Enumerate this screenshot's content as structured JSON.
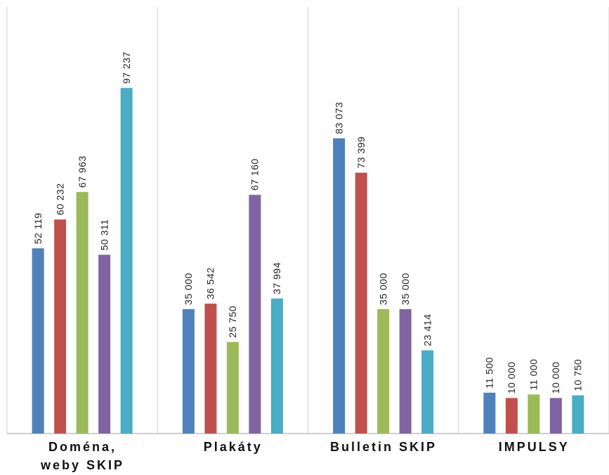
{
  "chart_data": {
    "type": "bar",
    "categories": [
      "Doména,\nweby SKIP",
      "Plakáty",
      "Bulletin SKIP",
      "IMPULSY"
    ],
    "series": [
      {
        "color": "#4f81bd",
        "values": [
          52119,
          35000,
          83073,
          11500
        ],
        "value_labels": [
          "52 119",
          "35 000",
          "83 073",
          "11 500"
        ]
      },
      {
        "color": "#c0504d",
        "values": [
          60232,
          36542,
          73399,
          10000
        ],
        "value_labels": [
          "60 232",
          "36 542",
          "73 399",
          "10 000"
        ]
      },
      {
        "color": "#9bbb59",
        "values": [
          67963,
          25750,
          35000,
          11000
        ],
        "value_labels": [
          "67 963",
          "25 750",
          "35 000",
          "11 000"
        ]
      },
      {
        "color": "#8064a2",
        "values": [
          50311,
          67160,
          35000,
          10000
        ],
        "value_labels": [
          "50 311",
          "67 160",
          "35 000",
          "10 000"
        ]
      },
      {
        "color": "#4bacc6",
        "values": [
          97237,
          37994,
          23414,
          10750
        ],
        "value_labels": [
          "97 237",
          "37 994",
          "23 414",
          "10 750"
        ]
      }
    ],
    "ylim": [
      0,
      120000
    ]
  }
}
